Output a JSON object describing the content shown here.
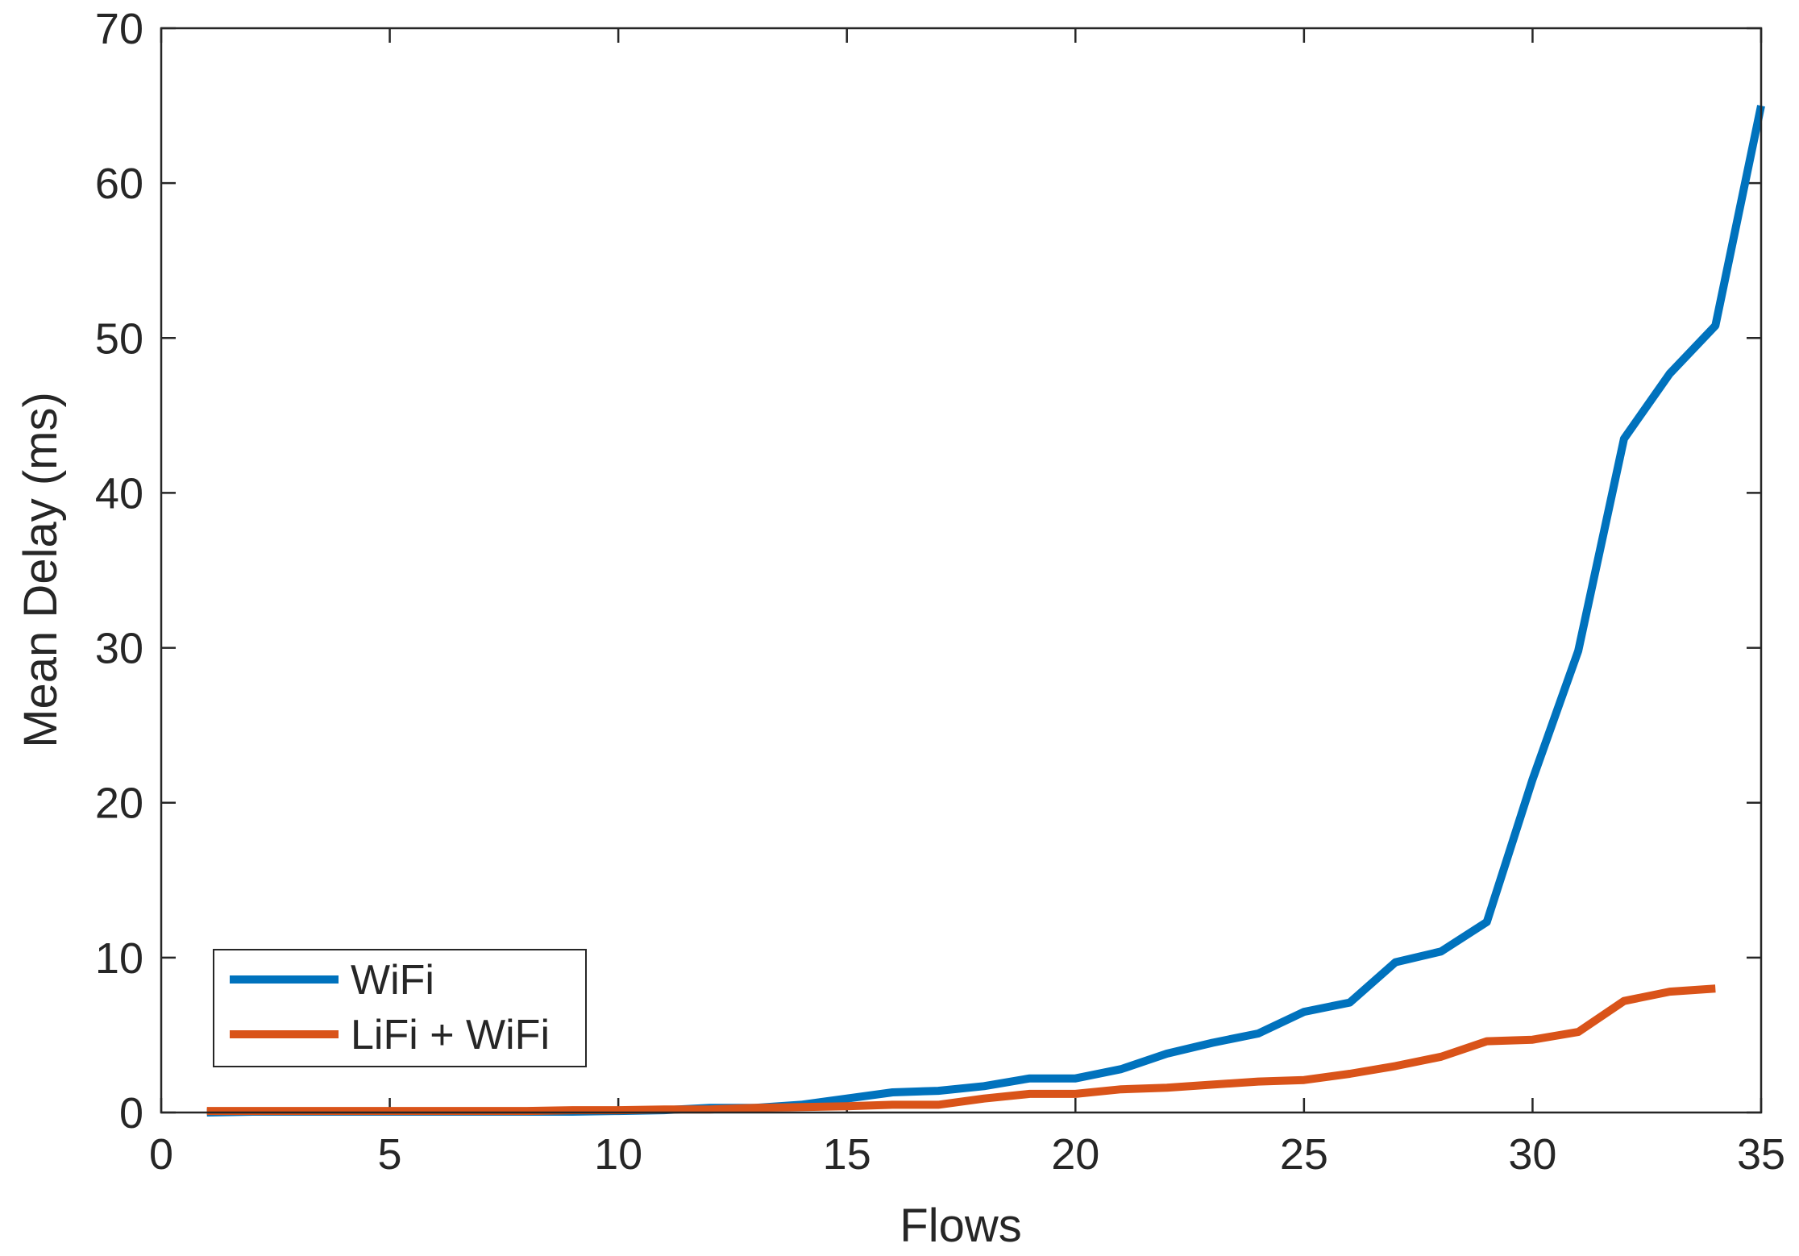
{
  "chart_data": {
    "type": "line",
    "title": "",
    "xlabel": "Flows",
    "ylabel": "Mean Delay (ms)",
    "xlim": [
      0,
      35
    ],
    "ylim": [
      0,
      70
    ],
    "xticks": [
      0,
      5,
      10,
      15,
      20,
      25,
      30,
      35
    ],
    "yticks": [
      0,
      10,
      20,
      30,
      40,
      50,
      60,
      70
    ],
    "grid": false,
    "box": true,
    "legend_position": "bottom-left",
    "series": [
      {
        "name": "WiFi",
        "color": "#0072BD",
        "x": [
          1,
          2,
          3,
          4,
          5,
          6,
          7,
          8,
          9,
          10,
          11,
          12,
          13,
          14,
          15,
          16,
          17,
          18,
          19,
          20,
          21,
          22,
          23,
          24,
          25,
          26,
          27,
          28,
          29,
          30,
          31,
          32,
          33,
          34,
          35
        ],
        "y": [
          0.0,
          0.05,
          0.05,
          0.05,
          0.05,
          0.05,
          0.05,
          0.05,
          0.05,
          0.1,
          0.15,
          0.3,
          0.3,
          0.5,
          0.9,
          1.3,
          1.4,
          1.7,
          2.2,
          2.2,
          2.8,
          3.8,
          4.5,
          5.1,
          6.5,
          7.1,
          9.7,
          10.4,
          12.3,
          21.5,
          29.8,
          43.5,
          47.7,
          50.8,
          65.0
        ]
      },
      {
        "name": "LiFi + WiFi",
        "color": "#D95319",
        "x": [
          1,
          2,
          3,
          4,
          5,
          6,
          7,
          8,
          9,
          10,
          11,
          12,
          13,
          14,
          15,
          16,
          17,
          18,
          19,
          20,
          21,
          22,
          23,
          24,
          25,
          26,
          27,
          28,
          29,
          30,
          31,
          32,
          33,
          34
        ],
        "y": [
          0.1,
          0.1,
          0.1,
          0.1,
          0.1,
          0.1,
          0.1,
          0.1,
          0.15,
          0.15,
          0.2,
          0.2,
          0.3,
          0.35,
          0.4,
          0.5,
          0.5,
          0.9,
          1.2,
          1.2,
          1.5,
          1.6,
          1.8,
          2.0,
          2.1,
          2.5,
          3.0,
          3.6,
          4.6,
          4.7,
          5.2,
          7.2,
          7.8,
          8.0
        ]
      }
    ]
  }
}
